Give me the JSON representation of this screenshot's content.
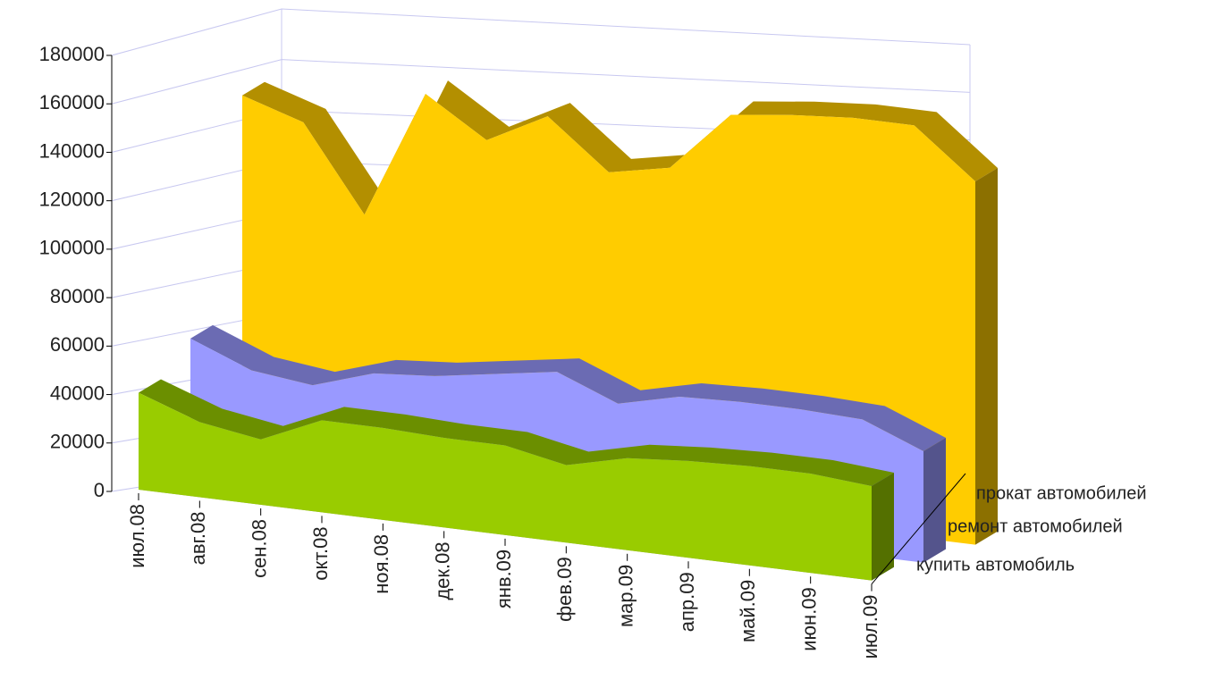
{
  "chart_data": {
    "type": "area3d",
    "categories": [
      "июл.08",
      "авг.08",
      "сен.08",
      "окт.08",
      "ноя.08",
      "дек.08",
      "янв.09",
      "фев.09",
      "мар.09",
      "апр.09",
      "май.09",
      "июн.09",
      "июл.09"
    ],
    "series": [
      {
        "name": "купить автомобиль",
        "color": "#99cc00",
        "values": [
          40000,
          31000,
          27000,
          38000,
          38000,
          37000,
          37000,
          32000,
          38000,
          40000,
          41000,
          41000,
          39000
        ]
      },
      {
        "name": "ремонт автомобилей",
        "color": "#9999ff",
        "values": [
          55000,
          45000,
          42000,
          50000,
          52000,
          56000,
          60000,
          50000,
          56000,
          57000,
          57000,
          56000,
          46000
        ]
      },
      {
        "name": "прокат автомобилей",
        "color": "#ffcc00",
        "values": [
          148000,
          140000,
          105000,
          158000,
          142000,
          155000,
          135000,
          140000,
          165000,
          168000,
          170000,
          170000,
          150000
        ]
      }
    ],
    "ylim": [
      0,
      180000
    ],
    "yticks": [
      0,
      20000,
      40000,
      60000,
      80000,
      100000,
      120000,
      140000,
      160000,
      180000
    ],
    "grid": true
  }
}
